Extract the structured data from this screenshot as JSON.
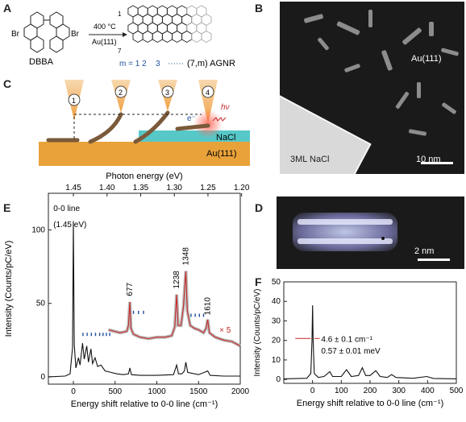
{
  "panels": {
    "A": "A",
    "B": "B",
    "C": "C",
    "D": "D",
    "E": "E",
    "F": "F"
  },
  "panelA": {
    "precursor": "DBBA",
    "br1": "Br",
    "br2": "Br",
    "condition_top": "400 °C",
    "condition_bottom": "Au(111)",
    "row_top": "1",
    "row_bottom": "7",
    "m_label": "m = 1 2",
    "m3": "3",
    "m_dots": "⋯⋯",
    "product": "(7,m) AGNR"
  },
  "panelB": {
    "substrate": "Au(111)",
    "region": "3ML NaCl",
    "scalebar": "10 nm"
  },
  "panelC": {
    "steps": [
      "1",
      "2",
      "3",
      "4"
    ],
    "electron": "e⁻",
    "photon": "hν",
    "nacl": "NaCl",
    "au": "Au(111)"
  },
  "panelD": {
    "scalebar": "2 nm"
  },
  "panelE": {
    "top_axis_title": "Photon energy (eV)",
    "top_ticks": [
      "1.45",
      "1.40",
      "1.35",
      "1.30",
      "1.25",
      "1.20"
    ],
    "ylabel": "Intensity (Counts/pC/eV)",
    "xlabel": "Energy shift relative to 0-0 line (cm⁻¹)",
    "zero_line_1": "0-0 line",
    "zero_line_2": "(1.45 eV)",
    "peak_labels": [
      "677",
      "1238",
      "1348",
      "1610"
    ],
    "times5": "× 5"
  },
  "panelF": {
    "ylabel": "Intensity (Counts/pC/eV)",
    "xlabel": "Energy shift relative to 0-0 line (cm⁻¹)",
    "width_1": "4.6 ± 0.1 cm⁻¹",
    "width_2": "0.57 ± 0.01 meV"
  },
  "chart_data": [
    {
      "type": "line",
      "panel": "E",
      "xlabel": "Energy shift relative to 0-0 line (cm⁻¹)",
      "ylabel": "Intensity (Counts/pC/eV)",
      "xlim": [
        -300,
        2000
      ],
      "ylim": [
        -5,
        125
      ],
      "x_ticks": [
        0,
        500,
        1000,
        1500,
        2000
      ],
      "y_ticks": [
        0,
        50,
        100
      ],
      "series": [
        {
          "name": "",
          "color": "#111111",
          "points": [
            [
              -300,
              0
            ],
            [
              -100,
              0.5
            ],
            [
              -40,
              2
            ],
            [
              -10,
              20
            ],
            [
              0,
              106
            ],
            [
              10,
              22
            ],
            [
              30,
              6
            ],
            [
              60,
              13
            ],
            [
              80,
              8
            ],
            [
              110,
              23
            ],
            [
              130,
              12
            ],
            [
              160,
              21
            ],
            [
              180,
              10
            ],
            [
              210,
              19
            ],
            [
              230,
              9
            ],
            [
              260,
              13
            ],
            [
              290,
              7
            ],
            [
              330,
              8
            ],
            [
              380,
              4
            ],
            [
              450,
              3
            ],
            [
              520,
              2
            ],
            [
              600,
              1.5
            ],
            [
              660,
              2
            ],
            [
              677,
              6
            ],
            [
              695,
              1.5
            ],
            [
              800,
              1
            ],
            [
              1000,
              1
            ],
            [
              1200,
              1.5
            ],
            [
              1238,
              8
            ],
            [
              1260,
              2
            ],
            [
              1300,
              2
            ],
            [
              1330,
              4
            ],
            [
              1348,
              10
            ],
            [
              1370,
              3
            ],
            [
              1500,
              1.5
            ],
            [
              1610,
              4
            ],
            [
              1640,
              1
            ],
            [
              1800,
              0.5
            ],
            [
              2000,
              0.5
            ]
          ]
        },
        {
          "name": "",
          "color": "#c62828",
          "points": [
            [
              420,
              32
            ],
            [
              560,
              30
            ],
            [
              640,
              31
            ],
            [
              660,
              35
            ],
            [
              677,
              51
            ],
            [
              690,
              33
            ],
            [
              720,
              29
            ],
            [
              800,
              27
            ],
            [
              900,
              26
            ],
            [
              1000,
              27
            ],
            [
              1100,
              27
            ],
            [
              1180,
              28
            ],
            [
              1215,
              34
            ],
            [
              1238,
              56
            ],
            [
              1255,
              35
            ],
            [
              1290,
              35
            ],
            [
              1320,
              48
            ],
            [
              1348,
              72
            ],
            [
              1365,
              45
            ],
            [
              1400,
              35
            ],
            [
              1450,
              33
            ],
            [
              1500,
              32
            ],
            [
              1560,
              30
            ],
            [
              1590,
              33
            ],
            [
              1610,
              39
            ],
            [
              1630,
              30
            ],
            [
              1700,
              27
            ],
            [
              1800,
              25
            ],
            [
              1900,
              24
            ],
            [
              2000,
              21
            ]
          ]
        }
      ],
      "blue_marks_x": [
        115,
        165,
        215,
        265,
        315,
        355,
        395,
        435,
        720,
        780,
        840,
        1410,
        1460,
        1510,
        1560
      ]
    },
    {
      "type": "line",
      "panel": "F",
      "xlabel": "Energy shift relative to 0-0 line (cm⁻¹)",
      "ylabel": "Intensity (Counts/pC/eV)",
      "xlim": [
        -100,
        500
      ],
      "ylim": [
        -2,
        50
      ],
      "x_ticks": [
        0,
        100,
        200,
        300,
        400,
        500
      ],
      "y_ticks": [
        0,
        10,
        20,
        30,
        40,
        50
      ],
      "series": [
        {
          "name": "",
          "color": "#111111",
          "points": [
            [
              -100,
              0.3
            ],
            [
              -20,
              0.6
            ],
            [
              -6,
              3
            ],
            [
              -2,
              20
            ],
            [
              0,
              38
            ],
            [
              2,
              20
            ],
            [
              6,
              3
            ],
            [
              20,
              1
            ],
            [
              40,
              1.5
            ],
            [
              60,
              4
            ],
            [
              70,
              1.5
            ],
            [
              100,
              1.5
            ],
            [
              118,
              5
            ],
            [
              135,
              1.5
            ],
            [
              160,
              2
            ],
            [
              173,
              6
            ],
            [
              185,
              2
            ],
            [
              200,
              2
            ],
            [
              220,
              4.5
            ],
            [
              235,
              1.5
            ],
            [
              260,
              1
            ],
            [
              275,
              2.5
            ],
            [
              290,
              1
            ],
            [
              350,
              0.6
            ],
            [
              397,
              1.5
            ],
            [
              420,
              0.5
            ],
            [
              500,
              0.3
            ]
          ]
        }
      ]
    }
  ]
}
